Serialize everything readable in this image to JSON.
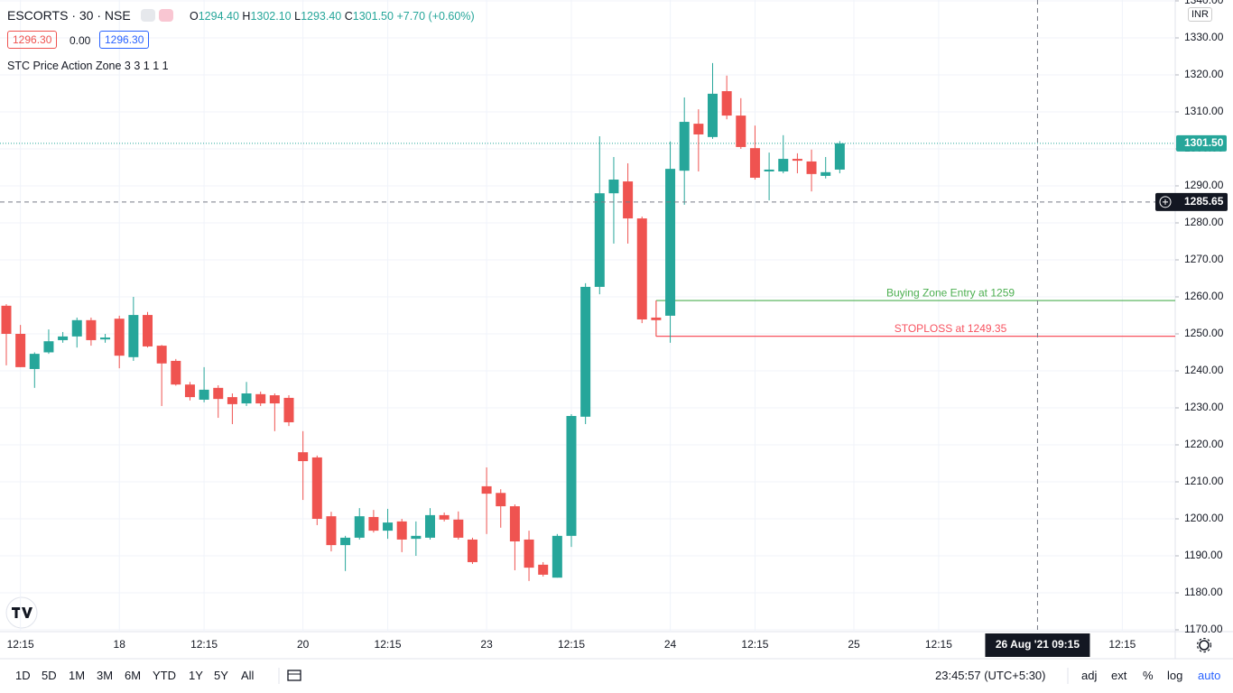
{
  "header": {
    "symbol": "ESCORTS · 30 · NSE",
    "ohlc": [
      {
        "label": "O",
        "value": "1294.40"
      },
      {
        "label": "H",
        "value": "1302.10"
      },
      {
        "label": "L",
        "value": "1293.40"
      },
      {
        "label": "C",
        "value": "1301.50"
      }
    ],
    "change": "+7.70 (+0.60%)",
    "bid": "1296.30",
    "spread": "0.00",
    "ask": "1296.30",
    "indicator": "STC Price Action Zone 3 3 1 1 1",
    "currency": "INR"
  },
  "toolbar": {
    "ranges": [
      "1D",
      "5D",
      "1M",
      "3M",
      "6M",
      "YTD",
      "1Y",
      "5Y",
      "All"
    ],
    "clock": "23:45:57 (UTC+5:30)",
    "options": [
      "adj",
      "ext",
      "%",
      "log",
      "auto"
    ]
  },
  "chart_data": {
    "type": "candlestick",
    "up_color": "#26a69a",
    "down_color": "#ef5350",
    "grid": true,
    "categories": [
      null,
      "12:15",
      null,
      null,
      null,
      null,
      null,
      null,
      "18",
      null,
      null,
      null,
      null,
      null,
      "12:15",
      null,
      null,
      null,
      null,
      null,
      null,
      "20",
      null,
      null,
      null,
      null,
      null,
      "12:15",
      null,
      null,
      null,
      null,
      null,
      null,
      "23",
      null,
      null,
      null,
      null,
      null,
      "12:15",
      null,
      null,
      null,
      null,
      null,
      null,
      "24",
      null,
      null,
      null,
      null,
      null,
      "12:15",
      null,
      null,
      null,
      null,
      null,
      null,
      "25",
      null,
      null,
      null,
      null,
      null,
      "12:15",
      null,
      null,
      null,
      null,
      null,
      null,
      "26 Aug '21  09:15",
      null,
      null,
      null,
      null,
      null,
      "12:15",
      null,
      null,
      null
    ],
    "open": [
      1257.6,
      1250,
      1240.5,
      1245,
      1248.3,
      1249.3,
      1253.7,
      1248.5,
      1254.1,
      1243.7,
      1255.1,
      1246.8,
      1242.7,
      1236.3,
      1232.2,
      1235.4,
      1232.9,
      1231.2,
      1233.7,
      1233.4,
      1232.7,
      1218,
      1216.6,
      1200.7,
      1192.9,
      1194.9,
      1200.5,
      1196.8,
      1199.3,
      1194.6,
      1194.9,
      1201,
      1199.8,
      1194.4,
      1208.8,
      1207,
      1203.4,
      1194.4,
      1187.6,
      1184.1,
      1195.4,
      1227.6,
      1262.7,
      1288,
      1291.2,
      1281.2,
      1254.4,
      1254.9,
      1294.1,
      1306.8,
      1303.2,
      1315.6,
      1309,
      1300.2,
      1293.9,
      1293.9,
      1297.3,
      1296.6,
      1292.7,
      1294.4,
      null,
      null,
      null,
      null,
      null,
      null,
      null,
      null,
      null,
      null,
      null,
      null,
      null,
      null,
      null,
      null,
      null,
      null,
      null,
      null,
      null,
      null,
      null
    ],
    "high": [
      1258,
      1252.4,
      1245,
      1251.2,
      1250.5,
      1254.4,
      1254.4,
      1250,
      1254.9,
      1260,
      1255.9,
      1247,
      1243.2,
      1237,
      1241,
      1236.1,
      1233.9,
      1237,
      1234.4,
      1233.9,
      1233.4,
      1223.7,
      1217.1,
      1201.9,
      1195.4,
      1202.9,
      1202.4,
      1202.7,
      1200,
      1199.3,
      1202.9,
      1201.7,
      1202,
      1194.9,
      1213.9,
      1208,
      1203.9,
      1196.8,
      1188.3,
      1195.9,
      1228.3,
      1263.7,
      1303.4,
      1297.8,
      1296.1,
      1281.7,
      1259,
      1302,
      1313.9,
      1310.7,
      1323.2,
      1319.8,
      1313.7,
      1306.3,
      1299,
      1303.7,
      1298.8,
      1299.8,
      1297.8,
      1302.1,
      null,
      null,
      null,
      null,
      null,
      null,
      null,
      null,
      null,
      null,
      null,
      null,
      null,
      null,
      null,
      null,
      null,
      null,
      null,
      null,
      null,
      null,
      null
    ],
    "low": [
      1241.5,
      1241,
      1235.4,
      1244.6,
      1247.6,
      1246.3,
      1246.8,
      1247.6,
      1240.7,
      1242.7,
      1246.3,
      1230.5,
      1236,
      1232,
      1231.5,
      1227.3,
      1225.6,
      1230.5,
      1230.5,
      1223.7,
      1225.1,
      1205.1,
      1198.3,
      1191.2,
      1185.9,
      1194.4,
      1196.3,
      1194.6,
      1191,
      1190,
      1194.4,
      1199.3,
      1194.4,
      1187.8,
      1195.9,
      1197.6,
      1186.1,
      1183.2,
      1184.4,
      1184.1,
      1192.4,
      1225.6,
      1260.7,
      1274.4,
      1274.4,
      1252.9,
      1249.3,
      1247.6,
      1284.9,
      1293.9,
      1302.7,
      1308,
      1300,
      1291.7,
      1286.1,
      1293.4,
      1293.4,
      1288.5,
      1292,
      1293.4,
      null,
      null,
      null,
      null,
      null,
      null,
      null,
      null,
      null,
      null,
      null,
      null,
      null,
      null,
      null,
      null,
      null,
      null,
      null,
      null,
      null,
      null,
      null
    ],
    "close": [
      1250,
      1241,
      1244.6,
      1248,
      1249.3,
      1253.7,
      1248.3,
      1249,
      1244.1,
      1255.1,
      1246.6,
      1242,
      1236.3,
      1232.9,
      1234.9,
      1232.4,
      1231,
      1233.9,
      1231.2,
      1231.2,
      1226.1,
      1215.6,
      1200,
      1192.9,
      1194.9,
      1200.7,
      1196.8,
      1199,
      1194.4,
      1195.4,
      1201,
      1199.8,
      1194.9,
      1188.3,
      1206.8,
      1203.4,
      1193.9,
      1186.8,
      1184.9,
      1195.4,
      1227.8,
      1262.7,
      1288,
      1291.7,
      1281.2,
      1253.9,
      1253.7,
      1294.6,
      1307.3,
      1303.9,
      1314.9,
      1309,
      1300.5,
      1292.2,
      1294.4,
      1297.3,
      1296.8,
      1293.2,
      1293.7,
      1301.5,
      null,
      null,
      null,
      null,
      null,
      null,
      null,
      null,
      null,
      null,
      null,
      null,
      null,
      null,
      null,
      null,
      null,
      null,
      null,
      null,
      null,
      null,
      null
    ],
    "ylim": [
      1169.51,
      1340.24
    ],
    "yticks": [
      {
        "value": 1170,
        "label": "1170.00"
      },
      {
        "value": 1180,
        "label": "1180.00"
      },
      {
        "value": 1190,
        "label": "1190.00"
      },
      {
        "value": 1200,
        "label": "1200.00"
      },
      {
        "value": 1210,
        "label": "1210.00"
      },
      {
        "value": 1220,
        "label": "1220.00"
      },
      {
        "value": 1230,
        "label": "1230.00"
      },
      {
        "value": 1240,
        "label": "1240.00"
      },
      {
        "value": 1250,
        "label": "1250.00"
      },
      {
        "value": 1260,
        "label": "1260.00"
      },
      {
        "value": 1270,
        "label": "1270.00"
      },
      {
        "value": 1280,
        "label": "1280.00"
      },
      {
        "value": 1290,
        "label": "1290.00"
      },
      {
        "value": 1300,
        "label": "1300.00"
      },
      {
        "value": 1310,
        "label": "1310.00"
      },
      {
        "value": 1320,
        "label": "1320.00"
      },
      {
        "value": 1330,
        "label": "1330.00"
      },
      {
        "value": 1340,
        "label": "1340.00"
      }
    ],
    "last_price": {
      "value": 1301.5,
      "label": "1301.50",
      "color": "#26a69a"
    },
    "crosshair": {
      "value": 1285.65
    },
    "annotations": [
      {
        "text": "Buying Zone Entry at 1259",
        "value": 1259,
        "color": "#4caf50"
      },
      {
        "text": "STOPLOSS at 1249.35",
        "value": 1249.35,
        "color": "#f7525f"
      }
    ]
  }
}
